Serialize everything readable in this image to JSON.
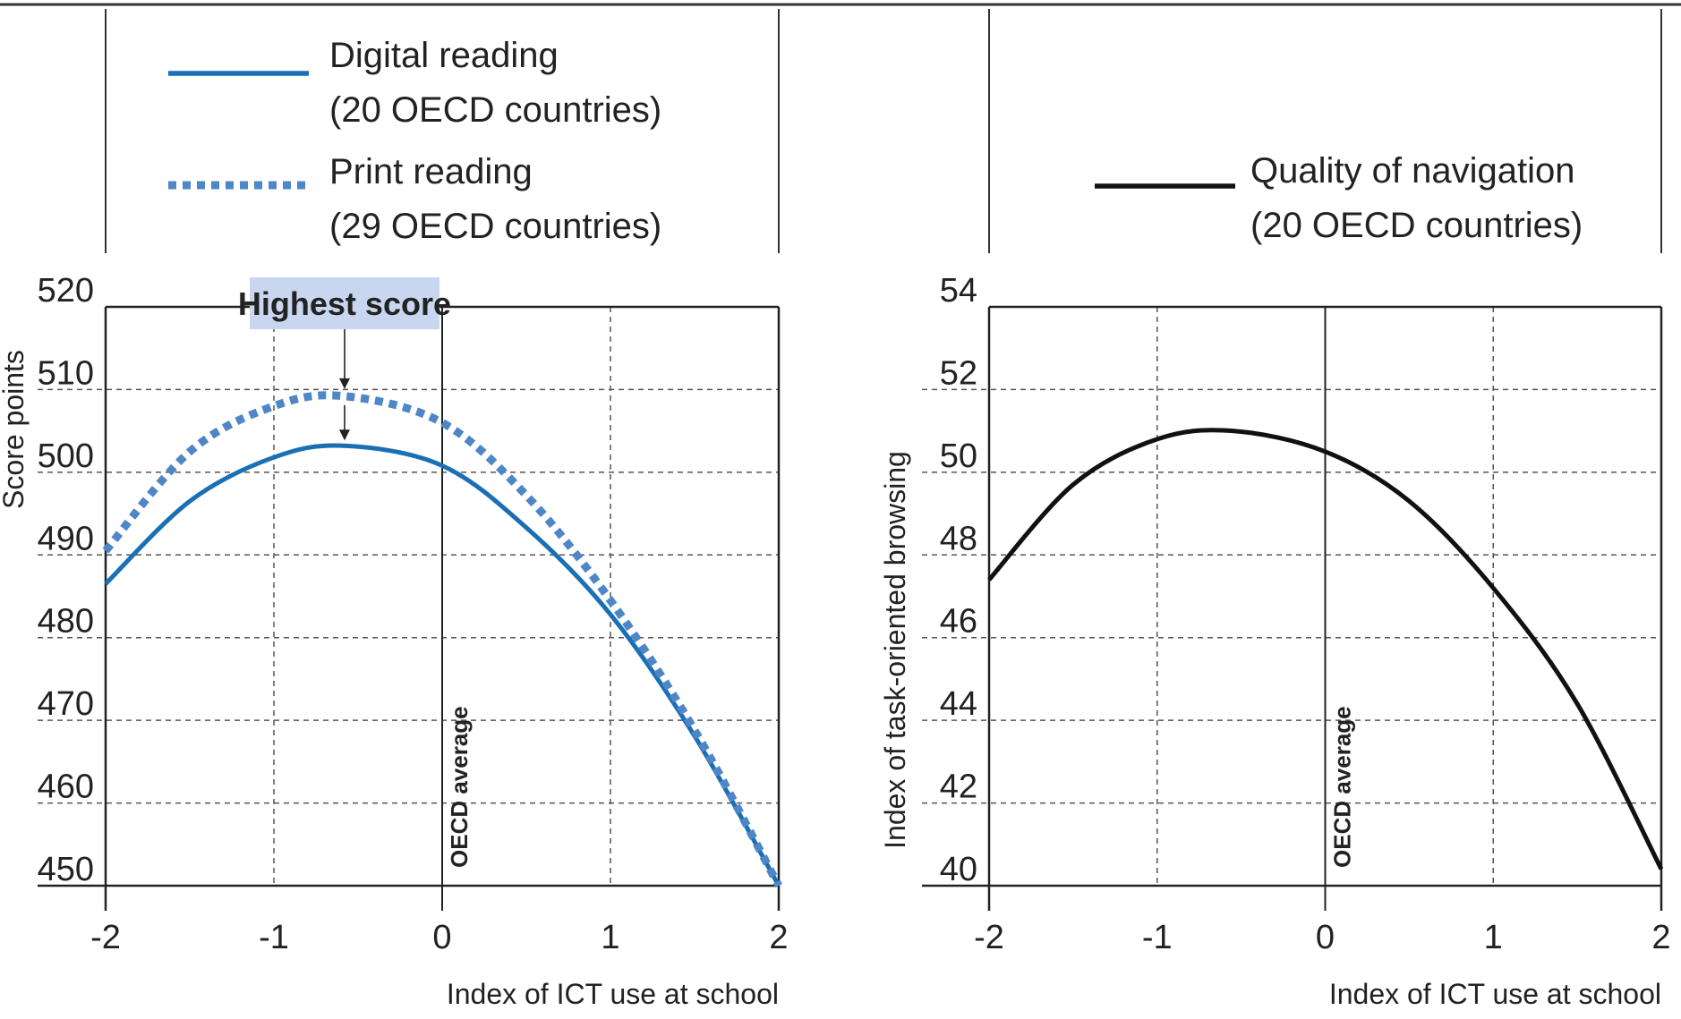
{
  "colors": {
    "digital": "#1a6fb5",
    "print": "#4f86c6",
    "navigation": "#111111",
    "annotation_fill": "#c9d6ef",
    "grid": "#555555",
    "frame": "#333333"
  },
  "chart_data": [
    {
      "type": "line",
      "xlabel": "Index of ICT use at school",
      "ylabel": "Score points",
      "xlim": [
        -2,
        2
      ],
      "ylim": [
        450,
        520
      ],
      "x_ticks": [
        -2,
        -1,
        0,
        1,
        2
      ],
      "y_ticks": [
        450,
        460,
        470,
        480,
        490,
        500,
        510,
        520
      ],
      "grid": true,
      "legend_position": "top",
      "reference_line": {
        "x": 0,
        "label": "OECD average"
      },
      "annotation": {
        "text": "Highest score",
        "x": -0.58
      },
      "series": [
        {
          "name": "Digital reading",
          "name_sub": "(20 OECD countries)",
          "style": "solid",
          "color_key": "digital",
          "x": [
            -2.0,
            -1.5,
            -1.0,
            -0.58,
            0.0,
            0.5,
            1.0,
            1.5,
            2.0
          ],
          "y": [
            486.5,
            496.5,
            501.8,
            503.2,
            500.8,
            493.3,
            482.8,
            468.1,
            450.0
          ]
        },
        {
          "name": "Print reading",
          "name_sub": "(29 OECD countries)",
          "style": "dotted",
          "color_key": "print",
          "x": [
            -2.0,
            -1.5,
            -1.0,
            -0.58,
            0.0,
            0.5,
            1.0,
            1.5,
            2.0
          ],
          "y": [
            490.5,
            502.5,
            508.0,
            509.2,
            506.0,
            497.2,
            484.5,
            468.8,
            450.0
          ]
        }
      ]
    },
    {
      "type": "line",
      "xlabel": "Index of ICT use at school",
      "ylabel": "Index of task-oriented browsing",
      "xlim": [
        -2,
        2
      ],
      "ylim": [
        40,
        54
      ],
      "x_ticks": [
        -2,
        -1,
        0,
        1,
        2
      ],
      "y_ticks": [
        40,
        42,
        44,
        46,
        48,
        50,
        52,
        54
      ],
      "grid": true,
      "legend_position": "top-right",
      "reference_line": {
        "x": 0,
        "label": "OECD average"
      },
      "series": [
        {
          "name": "Quality of navigation",
          "name_sub": "(20 OECD countries)",
          "style": "solid",
          "color_key": "navigation",
          "x": [
            -2.0,
            -1.5,
            -1.0,
            -0.55,
            0.0,
            0.5,
            1.0,
            1.5,
            2.0
          ],
          "y": [
            47.4,
            49.7,
            50.8,
            51.0,
            50.5,
            49.3,
            47.2,
            44.4,
            40.4
          ]
        }
      ]
    }
  ]
}
